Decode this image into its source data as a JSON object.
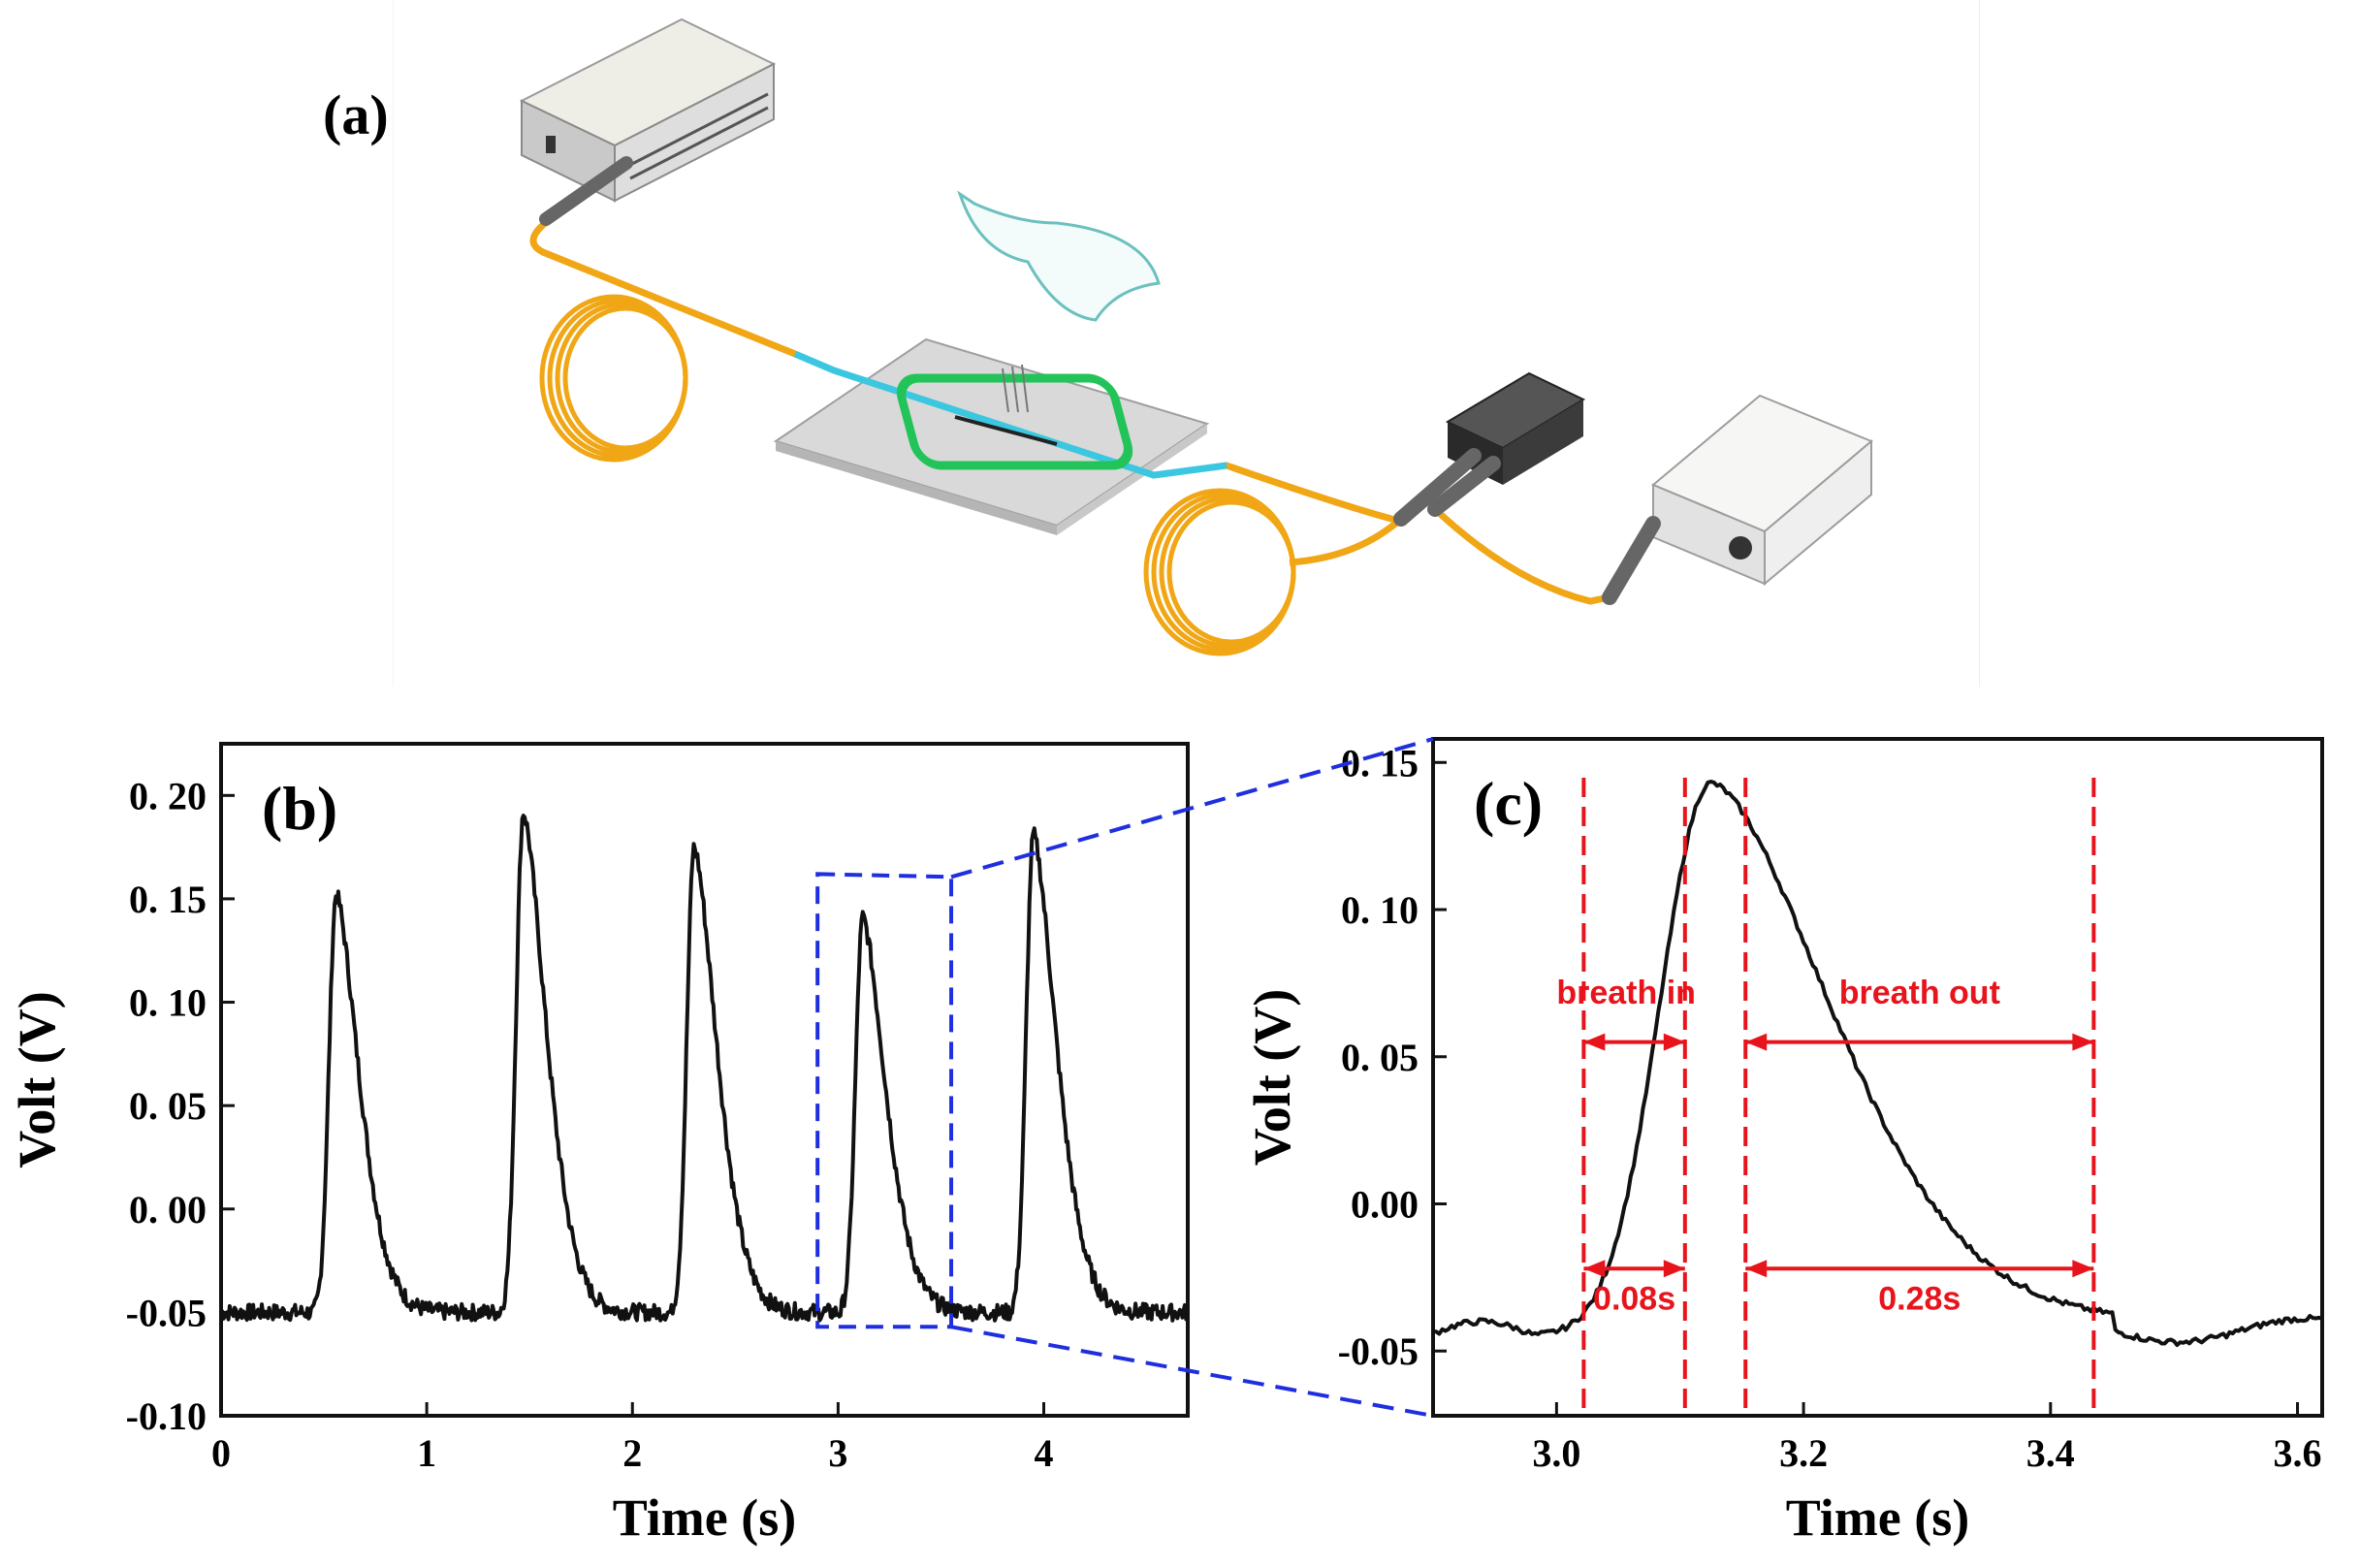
{
  "panel_a": {
    "label": "(a)"
  },
  "chart_data": [
    {
      "type": "line",
      "panel_label": "(b)",
      "xlabel": "Time (s)",
      "ylabel": "Volt (V)",
      "xlim": [
        0,
        4.7
      ],
      "ylim": [
        -0.1,
        0.225
      ],
      "x_ticks": [
        0,
        1,
        2,
        3,
        4
      ],
      "x_tick_labels": [
        "0",
        "1",
        "2",
        "3",
        "4"
      ],
      "y_ticks": [
        -0.1,
        -0.05,
        0.0,
        0.05,
        0.1,
        0.15,
        0.2
      ],
      "y_tick_labels": [
        "-0.10",
        "-0.05",
        "0. 00",
        "0. 05",
        "0. 10",
        "0. 15",
        "0. 20"
      ],
      "baseline": -0.05,
      "peaks": [
        {
          "t": 0.56,
          "v": 0.152
        },
        {
          "t": 1.47,
          "v": 0.192
        },
        {
          "t": 2.3,
          "v": 0.175
        },
        {
          "t": 3.12,
          "v": 0.141
        },
        {
          "t": 3.95,
          "v": 0.181
        }
      ],
      "series_color": "#111111",
      "zoom_box": {
        "x": [
          2.9,
          3.55
        ],
        "y": [
          -0.057,
          0.162
        ],
        "color": "#1f2fe0"
      }
    },
    {
      "type": "line",
      "panel_label": "(c)",
      "xlabel": "Time (s)",
      "ylabel": "Volt (V)",
      "xlim": [
        2.9,
        3.62
      ],
      "ylim": [
        -0.072,
        0.158
      ],
      "x_ticks": [
        3.0,
        3.2,
        3.4,
        3.6
      ],
      "x_tick_labels": [
        "3.0",
        "3.2",
        "3.4",
        "3.6"
      ],
      "y_ticks": [
        -0.05,
        0.0,
        0.05,
        0.1,
        0.15
      ],
      "y_tick_labels": [
        "-0.05",
        "0.00",
        "0. 05",
        "0. 10",
        "0. 15"
      ],
      "peak": {
        "t": 3.125,
        "v": 0.143
      },
      "series_color": "#111111",
      "markers": [
        3.022,
        3.104,
        3.153,
        3.435
      ],
      "marker_color": "#e8141c",
      "annotations": [
        {
          "text": "breath in",
          "t": 3.0,
          "v": 0.068
        },
        {
          "text": "breath out",
          "t": 3.294,
          "v": 0.068
        },
        {
          "text": "0.08s",
          "t": 3.063,
          "v": -0.036
        },
        {
          "text": "0.28s",
          "t": 3.294,
          "v": -0.036
        }
      ]
    }
  ]
}
